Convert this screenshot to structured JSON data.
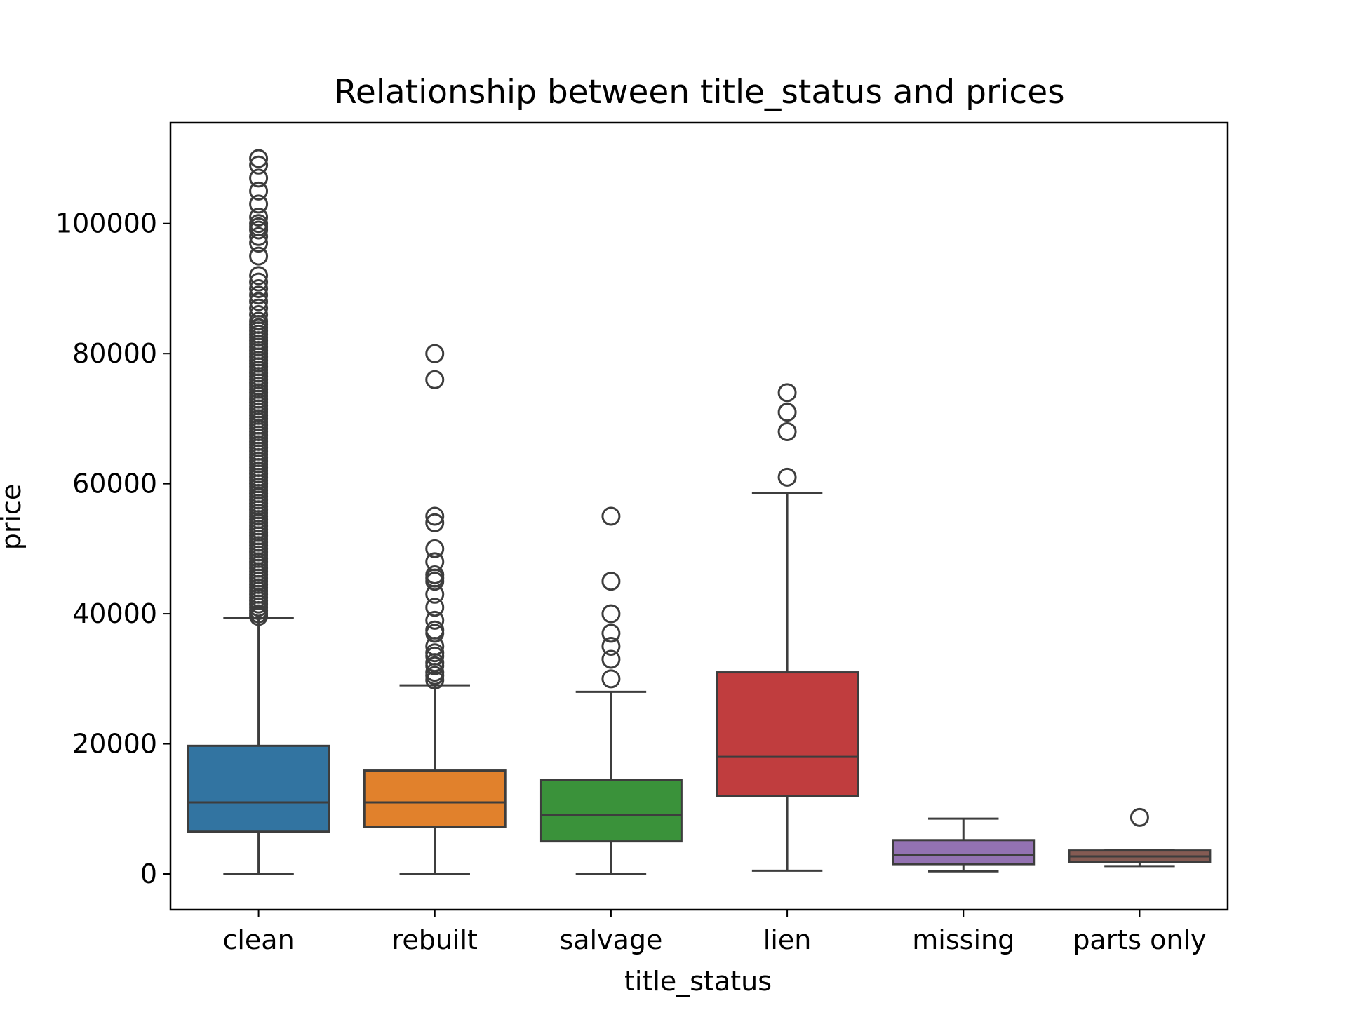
{
  "chart_data": {
    "type": "boxplot",
    "title": "Relationship between title_status and prices",
    "xlabel": "title_status",
    "ylabel": "price",
    "ylim": [
      -5500,
      115500
    ],
    "yticks": [
      0,
      20000,
      40000,
      60000,
      80000,
      100000
    ],
    "yticks_labels": [
      "0",
      "20000",
      "40000",
      "60000",
      "80000",
      "100000"
    ],
    "grid": false,
    "categories": [
      "clean",
      "rebuilt",
      "salvage",
      "lien",
      "missing",
      "parts only"
    ],
    "colors": [
      "#3274a1",
      "#e1812c",
      "#3a923a",
      "#c03d3e",
      "#9372b2",
      "#845b53"
    ],
    "outline_color": "#3d3d3d",
    "boxes": [
      {
        "category": "clean",
        "whisker_low": 0,
        "q1": 6500,
        "median": 11000,
        "q3": 19700,
        "whisker_high": 39400,
        "outliers": [
          39600,
          40000,
          40500,
          41000,
          41500,
          42000,
          42500,
          43000,
          43500,
          44000,
          44500,
          45000,
          45500,
          46000,
          46500,
          47000,
          47500,
          48000,
          48500,
          49000,
          49500,
          50000,
          50500,
          51000,
          51500,
          52000,
          52500,
          53000,
          53500,
          54000,
          54500,
          55000,
          55500,
          56000,
          56500,
          57000,
          57500,
          58000,
          58500,
          59000,
          59500,
          60000,
          60500,
          61000,
          61500,
          62000,
          62500,
          63000,
          63500,
          64000,
          64500,
          65000,
          65500,
          66000,
          66500,
          67000,
          67500,
          68000,
          68500,
          69000,
          69500,
          70000,
          70500,
          71000,
          71500,
          72000,
          72500,
          73000,
          73500,
          74000,
          74500,
          75000,
          75500,
          76000,
          76500,
          77000,
          77500,
          78000,
          78500,
          79000,
          79500,
          80000,
          80500,
          81000,
          81500,
          82000,
          82500,
          83000,
          83500,
          84000,
          84500,
          85000,
          86000,
          87000,
          88000,
          89000,
          90000,
          91000,
          92000,
          95000,
          97000,
          98000,
          99000,
          99500,
          100000,
          101000,
          103000,
          105000,
          107000,
          109000,
          110000
        ]
      },
      {
        "category": "rebuilt",
        "whisker_low": 0,
        "q1": 7200,
        "median": 11000,
        "q3": 15900,
        "whisker_high": 29000,
        "outliers": [
          29800,
          30500,
          31000,
          32000,
          32500,
          33500,
          34000,
          35000,
          37000,
          37500,
          39000,
          41000,
          43000,
          45000,
          45500,
          46000,
          48000,
          50000,
          54000,
          55000,
          76000,
          80000
        ]
      },
      {
        "category": "salvage",
        "whisker_low": 0,
        "q1": 5000,
        "median": 9000,
        "q3": 14500,
        "whisker_high": 28000,
        "outliers": [
          30000,
          33000,
          35000,
          37000,
          40000,
          45000,
          55000
        ]
      },
      {
        "category": "lien",
        "whisker_low": 500,
        "q1": 12000,
        "median": 18000,
        "q3": 31000,
        "whisker_high": 58500,
        "outliers": [
          61000,
          68000,
          71000,
          74000
        ]
      },
      {
        "category": "missing",
        "whisker_low": 400,
        "q1": 1500,
        "median": 2900,
        "q3": 5200,
        "whisker_high": 8500,
        "outliers": []
      },
      {
        "category": "parts only",
        "whisker_low": 1200,
        "q1": 1800,
        "median": 2700,
        "q3": 3600,
        "whisker_high": 3700,
        "outliers": [
          8700
        ]
      }
    ]
  }
}
